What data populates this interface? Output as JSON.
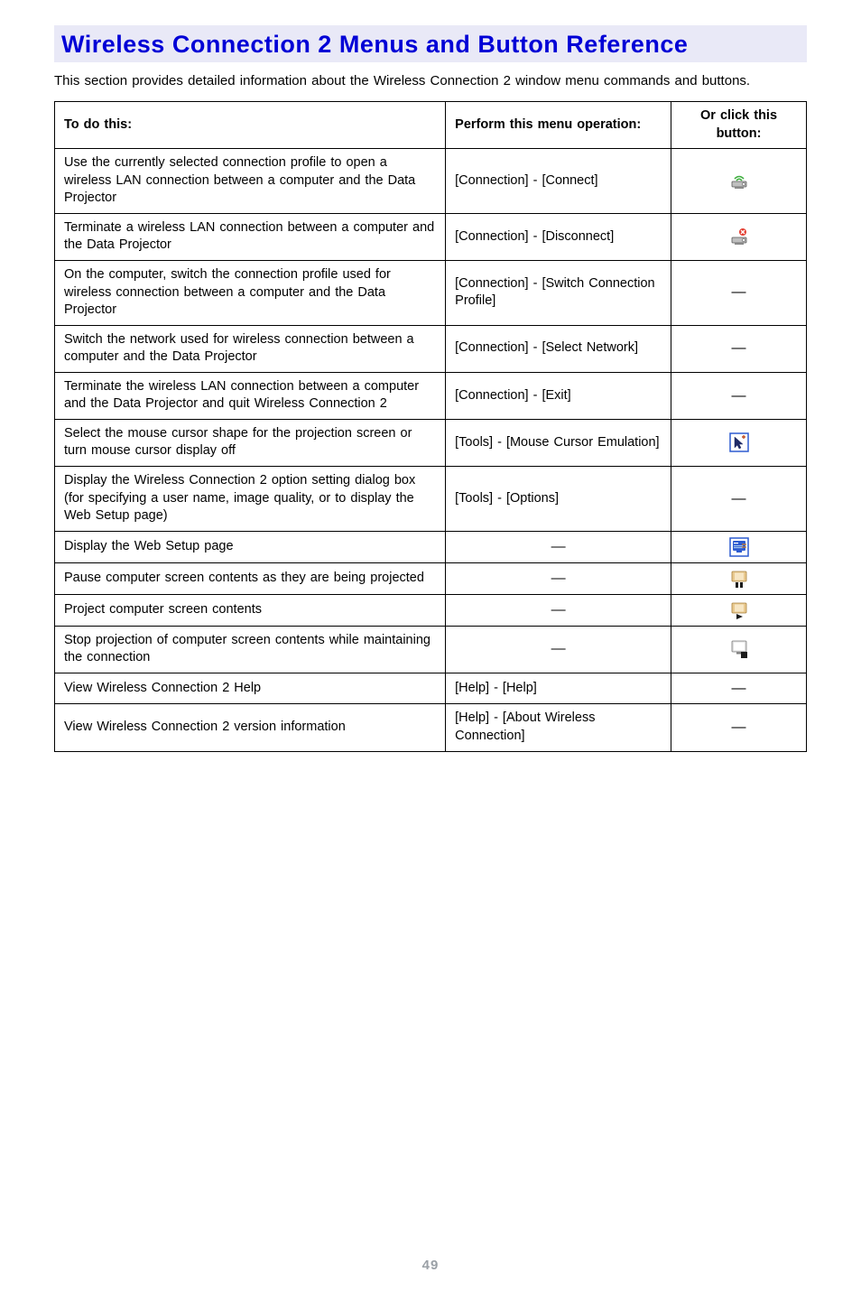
{
  "title": "Wireless Connection 2 Menus and Button Reference",
  "intro": "This section provides detailed information about the Wireless Connection 2 window menu commands and buttons.",
  "headers": {
    "task": "To do this:",
    "op": "Perform this menu operation:",
    "btn": "Or click this button:"
  },
  "rows": [
    {
      "task": "Use the currently selected connection profile to open a wireless LAN connection between a computer and the Data Projector",
      "op": "[Connection] - [Connect]",
      "icon": "connect"
    },
    {
      "task": "Terminate a wireless LAN connection between a computer and the Data Projector",
      "op": "[Connection] - [Disconnect]",
      "icon": "disconnect"
    },
    {
      "task": "On the computer, switch the connection profile used for wireless connection between a computer and the Data Projector",
      "op": "[Connection] - [Switch Connection Profile]",
      "icon": "dash"
    },
    {
      "task": "Switch the network used for wireless connection between a computer and the Data Projector",
      "op": "[Connection] - [Select Network]",
      "icon": "dash"
    },
    {
      "task": "Terminate the wireless LAN connection between a computer and the Data Projector and quit Wireless Connection 2",
      "op": "[Connection] - [Exit]",
      "icon": "dash"
    },
    {
      "task": "Select the mouse cursor shape for the projection screen or turn mouse cursor display off",
      "op": "[Tools] - [Mouse Cursor Emulation]",
      "icon": "cursor"
    },
    {
      "task": "Display the Wireless Connection 2 option setting dialog box (for specifying a user name, image quality, or to display the Web Setup page)",
      "op": "[Tools] - [Options]",
      "icon": "dash"
    },
    {
      "task": "Display the Web Setup page",
      "op": "—",
      "icon": "websetup"
    },
    {
      "task": "Pause computer screen contents as they are being projected",
      "op": "—",
      "icon": "pause"
    },
    {
      "task": "Project computer screen contents",
      "op": "—",
      "icon": "play"
    },
    {
      "task": "Stop projection of computer screen contents while maintaining the connection",
      "op": "—",
      "icon": "stop"
    },
    {
      "task": "View Wireless Connection 2 Help",
      "op": "[Help] - [Help]",
      "icon": "dash"
    },
    {
      "task": "View Wireless Connection 2 version information",
      "op": "[Help] - [About Wireless Connection]",
      "icon": "dash"
    }
  ],
  "page_number": "49",
  "colors": {
    "title_band_bg": "#e9e9f7",
    "title_text": "#0000d6",
    "page_num": "#9aa0a6"
  }
}
